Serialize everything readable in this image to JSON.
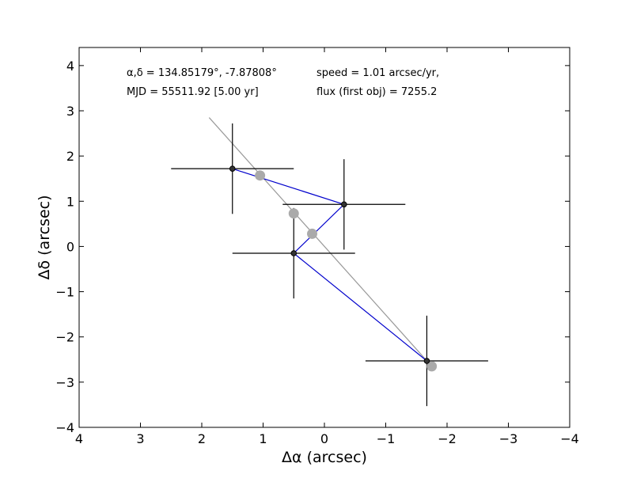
{
  "chart_data": {
    "type": "scatter",
    "xlabel": "Δα (arcsec)",
    "ylabel": "Δδ (arcsec)",
    "xlim": [
      4,
      -4
    ],
    "ylim": [
      -4,
      4.4
    ],
    "xticks": [
      4,
      3,
      2,
      1,
      0,
      -1,
      -2,
      -3,
      -4
    ],
    "yticks": [
      -4,
      -3,
      -2,
      -1,
      0,
      1,
      2,
      3,
      4
    ],
    "annotations": [
      "α,δ = 134.85179°, -7.87808°",
      "MJD = 55511.92 [5.00 yr]",
      "speed = 1.01 arcsec/yr,",
      "flux (first obj) = 7255.2"
    ],
    "observed": {
      "color": "#000000",
      "connector_color": "#0000cc",
      "points": [
        {
          "x": 1.5,
          "y": 1.72,
          "xerr": 1.0,
          "yerr": 1.0
        },
        {
          "x": -0.32,
          "y": 0.93,
          "xerr": 1.0,
          "yerr": 1.0
        },
        {
          "x": 0.5,
          "y": -0.15,
          "xerr": 1.0,
          "yerr": 1.0
        },
        {
          "x": -1.67,
          "y": -2.53,
          "xerr": 1.0,
          "yerr": 1.0
        }
      ]
    },
    "model": {
      "color": "#aaaaaa",
      "points": [
        {
          "x": 1.05,
          "y": 1.57
        },
        {
          "x": 0.5,
          "y": 0.73
        },
        {
          "x": 0.2,
          "y": 0.28
        },
        {
          "x": -1.75,
          "y": -2.65
        }
      ]
    },
    "fit_line": {
      "color": "#999999",
      "x": [
        1.88,
        -1.75
      ],
      "y": [
        2.85,
        -2.65
      ]
    }
  }
}
